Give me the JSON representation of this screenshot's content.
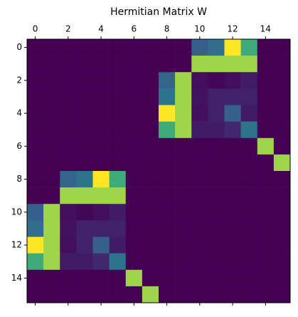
{
  "chart_data": {
    "type": "heatmap",
    "title": "Hermitian Matrix W",
    "colormap": "viridis",
    "vlim": [
      0,
      1
    ],
    "xlim": [
      -0.5,
      15.5
    ],
    "ylim": [
      15.5,
      -0.5
    ],
    "xticks": [
      0,
      2,
      4,
      6,
      8,
      10,
      12,
      14
    ],
    "yticks": [
      0,
      2,
      4,
      6,
      8,
      10,
      12,
      14
    ],
    "z": [
      [
        0,
        0,
        0,
        0,
        0,
        0,
        0,
        0,
        0,
        0,
        0.3,
        0.36,
        1,
        0.62,
        0,
        0
      ],
      [
        0,
        0,
        0,
        0,
        0,
        0,
        0,
        0,
        0,
        0,
        0.85,
        0.85,
        0.85,
        0.85,
        0,
        0
      ],
      [
        0,
        0,
        0,
        0,
        0,
        0,
        0,
        0,
        0.32,
        0.85,
        0.04,
        0.02,
        0.04,
        0.08,
        0,
        0
      ],
      [
        0,
        0,
        0,
        0,
        0,
        0,
        0,
        0,
        0.38,
        0.85,
        0.05,
        0.1,
        0.1,
        0.1,
        0,
        0
      ],
      [
        0,
        0,
        0,
        0,
        0,
        0,
        0,
        0,
        1,
        0.85,
        0.04,
        0.1,
        0.3,
        0.08,
        0,
        0
      ],
      [
        0,
        0,
        0,
        0,
        0,
        0,
        0,
        0,
        0.62,
        0.85,
        0.08,
        0.08,
        0.12,
        0.38,
        0,
        0
      ],
      [
        0,
        0,
        0,
        0,
        0,
        0,
        0,
        0,
        0,
        0,
        0,
        0,
        0,
        0,
        0.85,
        0
      ],
      [
        0,
        0,
        0,
        0,
        0,
        0,
        0,
        0,
        0,
        0,
        0,
        0,
        0,
        0,
        0,
        0.85
      ],
      [
        0,
        0,
        0.32,
        0.38,
        1,
        0.62,
        0,
        0,
        0,
        0,
        0,
        0,
        0,
        0,
        0,
        0
      ],
      [
        0,
        0,
        0.85,
        0.85,
        0.85,
        0.85,
        0,
        0,
        0,
        0,
        0,
        0,
        0,
        0,
        0,
        0
      ],
      [
        0.3,
        0.85,
        0.04,
        0.02,
        0.04,
        0.08,
        0,
        0,
        0,
        0,
        0,
        0,
        0,
        0,
        0,
        0
      ],
      [
        0.36,
        0.85,
        0.05,
        0.1,
        0.1,
        0.1,
        0,
        0,
        0,
        0,
        0,
        0,
        0,
        0,
        0,
        0
      ],
      [
        1,
        0.85,
        0.04,
        0.1,
        0.3,
        0.08,
        0,
        0,
        0,
        0,
        0,
        0,
        0,
        0,
        0,
        0
      ],
      [
        0.62,
        0.85,
        0.08,
        0.08,
        0.12,
        0.38,
        0,
        0,
        0,
        0,
        0,
        0,
        0,
        0,
        0,
        0
      ],
      [
        0,
        0,
        0,
        0,
        0,
        0,
        0.85,
        0,
        0,
        0,
        0,
        0,
        0,
        0,
        0,
        0
      ],
      [
        0,
        0,
        0,
        0,
        0,
        0,
        0,
        0.85,
        0,
        0,
        0,
        0,
        0,
        0,
        0,
        0
      ]
    ]
  }
}
